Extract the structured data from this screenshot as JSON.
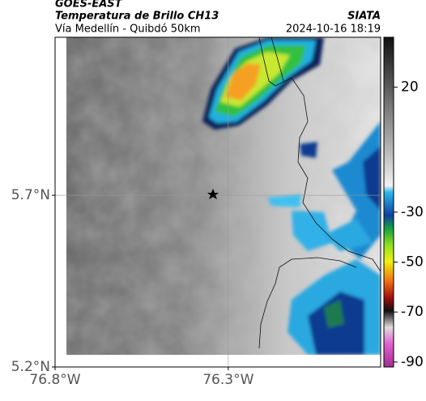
{
  "header": {
    "title": "GOES-EAST",
    "subtitle": "Temperatura de Brillo CH13",
    "source": "SIATA",
    "route": "Vía Medellín - Quibdó 50km",
    "datetime": "2024-10-16 18:19"
  },
  "map": {
    "xlim": [
      -76.8,
      -75.86
    ],
    "ylim": [
      5.2,
      6.16
    ],
    "xticks": [
      {
        "value": -76.8,
        "label": "76.8°W"
      },
      {
        "value": -76.3,
        "label": "76.3°W"
      }
    ],
    "yticks": [
      {
        "value": 5.2,
        "label": "5.2°N"
      },
      {
        "value": 5.7,
        "label": "5.7°N"
      }
    ],
    "grid": true
  },
  "colorbar": {
    "lim": [
      40,
      -92
    ],
    "ticks": [
      20,
      -30,
      -50,
      -70,
      -90
    ]
  }
}
